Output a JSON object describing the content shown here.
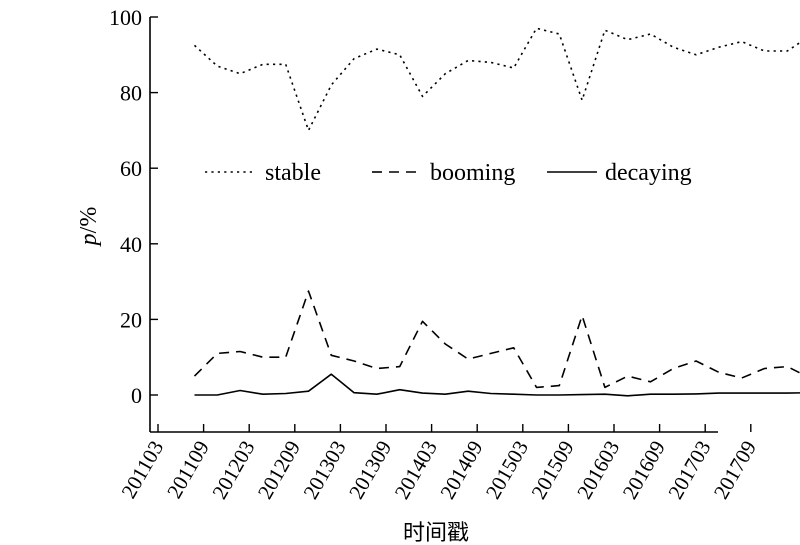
{
  "chart_data": {
    "type": "line",
    "title": "",
    "xlabel": "时间戳",
    "ylabel_var": "p",
    "ylabel_unit": "/%",
    "ylim": [
      0,
      100
    ],
    "y_ticks": [
      "0",
      "20",
      "40",
      "60",
      "80",
      "100"
    ],
    "x_tick_labels": [
      "201103",
      "201109",
      "201203",
      "201209",
      "201303",
      "201309",
      "201403",
      "201409",
      "201503",
      "201509",
      "201603",
      "201609",
      "201703",
      "201709"
    ],
    "legend_position": "center",
    "series": [
      {
        "name": "stable",
        "style": "dotted",
        "values": [
          92.5,
          87,
          85,
          87.5,
          87.5,
          70,
          82,
          89,
          91.5,
          90,
          79,
          85,
          88.5,
          88,
          86.5,
          97,
          95.5,
          78,
          96.5,
          94,
          95.5,
          92,
          90,
          92,
          93.5,
          91,
          91,
          95
        ]
      },
      {
        "name": "booming",
        "style": "dashed",
        "values": [
          5,
          11,
          11.5,
          10,
          10,
          27.5,
          10.5,
          9,
          7,
          7.5,
          19.5,
          13.5,
          9.5,
          11,
          12.5,
          2,
          2.5,
          21,
          2,
          5,
          3.5,
          7,
          9,
          6,
          4.5,
          7,
          7.5,
          4.5
        ]
      },
      {
        "name": "decaying",
        "style": "solid",
        "values": [
          0,
          0,
          1.2,
          0.2,
          0.4,
          1,
          5.5,
          0.6,
          0.2,
          1.4,
          0.5,
          0.2,
          1,
          0.4,
          0.2,
          0,
          0,
          0.1,
          0.2,
          -0.2,
          0.2,
          0.2,
          0.3,
          0.5,
          0.5,
          0.5,
          0.5,
          0.6
        ]
      }
    ]
  }
}
